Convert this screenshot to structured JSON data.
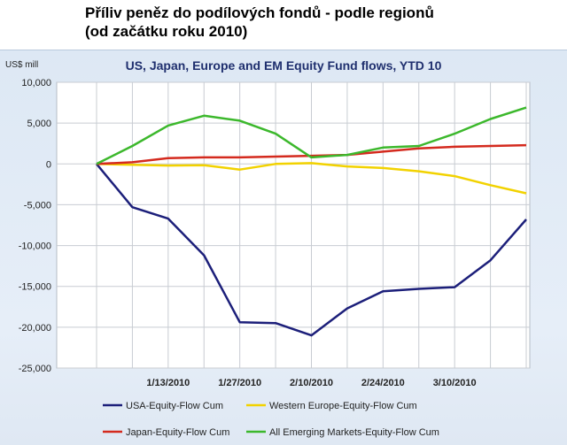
{
  "heading": {
    "line1": "Příliv peněz do podílových fondů - podle regionů",
    "line2": "(od začátku roku 2010)"
  },
  "chart_data": {
    "type": "line",
    "title": "US, Japan, Europe and EM Equity Fund flows, YTD 10",
    "ylabel": "US$ mill",
    "xlabel": "",
    "ylim": [
      -25000,
      10000
    ],
    "yticks": [
      10000,
      5000,
      0,
      -5000,
      -10000,
      -15000,
      -20000,
      -25000
    ],
    "ytick_labels": [
      "10,000",
      "5,000",
      "0",
      "-5,000",
      "-10,000",
      "-15,000",
      "-20,000",
      "-25,000"
    ],
    "x_count": 13,
    "xtick_labels": [
      {
        "index": 2,
        "label": "1/13/2010"
      },
      {
        "index": 4,
        "label": "1/27/2010"
      },
      {
        "index": 6,
        "label": "2/10/2010"
      },
      {
        "index": 8,
        "label": "2/24/2010"
      },
      {
        "index": 10,
        "label": "3/10/2010"
      }
    ],
    "grid": true,
    "legend_position": "bottom",
    "series": [
      {
        "name": "USA-Equity-Flow Cum",
        "color": "#1c1f7a",
        "values": [
          0,
          -5300,
          -6700,
          -11200,
          -19400,
          -19500,
          -21000,
          -17700,
          -15600,
          -15300,
          -15100,
          -11800,
          -6800
        ]
      },
      {
        "name": "Western Europe-Equity-Flow Cum",
        "color": "#f2d200",
        "values": [
          0,
          -100,
          -200,
          -150,
          -700,
          0,
          100,
          -300,
          -500,
          -900,
          -1500,
          -2600,
          -3600
        ]
      },
      {
        "name": "Japan-Equity-Flow Cum",
        "color": "#d42a1e",
        "values": [
          0,
          200,
          700,
          800,
          800,
          900,
          1000,
          1100,
          1500,
          1900,
          2100,
          2200,
          2300
        ]
      },
      {
        "name": "All Emerging Markets-Equity-Flow Cum",
        "color": "#3cb82c",
        "values": [
          0,
          2200,
          4700,
          5900,
          5300,
          3700,
          800,
          1100,
          2000,
          2200,
          3700,
          5500,
          6900
        ]
      }
    ]
  }
}
